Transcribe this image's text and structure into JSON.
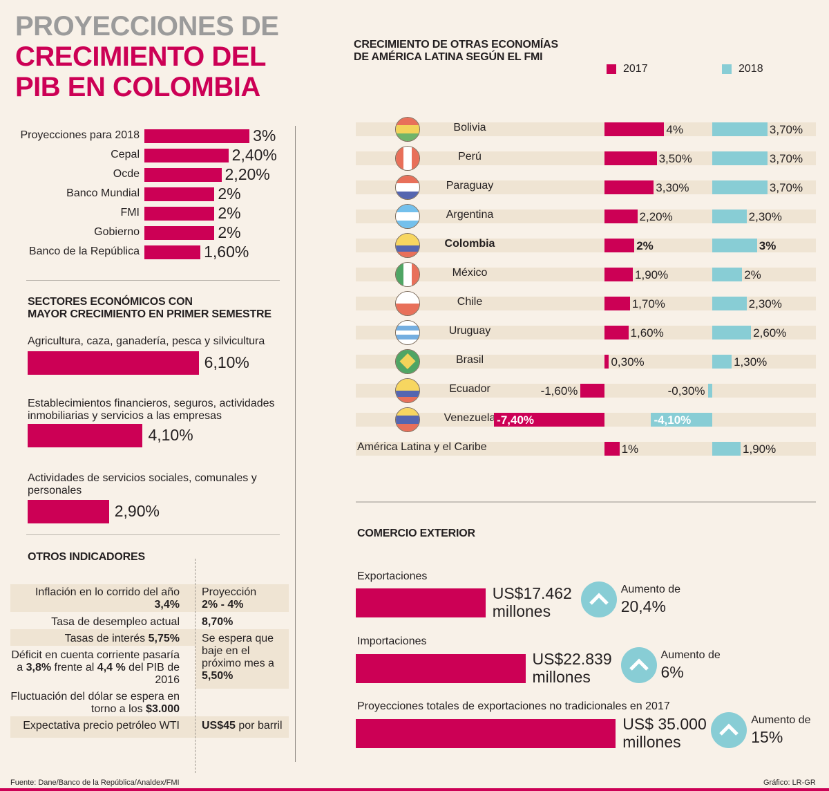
{
  "colors": {
    "accent": "#cc0055",
    "accent_2018": "#88cdd5",
    "title_gray": "#9b9b9b",
    "band": "#efe4d3",
    "background": "#f8f1e8"
  },
  "title": {
    "line1": "PROYECCIONES DE",
    "line2": "CRECIMIENTO DEL",
    "line3": "PIB EN COLOMBIA"
  },
  "chart_data": [
    {
      "type": "bar",
      "orientation": "horizontal",
      "title": "Proyecciones de crecimiento del PIB en Colombia",
      "categories": [
        "Proyecciones para 2018",
        "Cepal",
        "Ocde",
        "Banco Mundial",
        "FMI",
        "Gobierno",
        "Banco de la República"
      ],
      "values": [
        3.0,
        2.4,
        2.2,
        2.0,
        2.0,
        2.0,
        1.6
      ],
      "labels": [
        "3%",
        "2,40%",
        "2,20%",
        "2%",
        "2%",
        "2%",
        "1,60%"
      ],
      "unit": "%"
    },
    {
      "type": "bar",
      "orientation": "horizontal",
      "title": "SECTORES ECONÓMICOS CON MAYOR CRECIMIENTO EN PRIMER SEMESTRE",
      "categories": [
        "Agricultura, caza, ganadería, pesca y silvicultura",
        "Establecimientos financieros, seguros, actividades inmobiliarias y servicios a las empresas",
        "Actividades de servicios sociales, comunales y personales"
      ],
      "values": [
        6.1,
        4.1,
        2.9
      ],
      "labels": [
        "6,10%",
        "4,10%",
        "2,90%"
      ],
      "unit": "%"
    },
    {
      "type": "bar",
      "orientation": "horizontal",
      "title": "CRECIMIENTO DE OTRAS ECONOMÍAS DE AMÉRICA LATINA SEGÚN EL FMI",
      "categories": [
        "Bolivia",
        "Perú",
        "Paraguay",
        "Argentina",
        "Colombia",
        "México",
        "Chile",
        "Uruguay",
        "Brasil",
        "Ecuador",
        "Venezuela",
        "América Latina y el Caribe"
      ],
      "series": [
        {
          "name": "2017",
          "color": "#cc0055",
          "values": [
            4.0,
            3.5,
            3.3,
            2.2,
            2.0,
            1.9,
            1.7,
            1.6,
            0.3,
            -1.6,
            -7.4,
            1.0
          ],
          "labels": [
            "4%",
            "3,50%",
            "3,30%",
            "2,20%",
            "2%",
            "1,90%",
            "1,70%",
            "1,60%",
            "0,30%",
            "-1,60%",
            "-7,40%",
            "1%"
          ]
        },
        {
          "name": "2018",
          "color": "#88cdd5",
          "values": [
            3.7,
            3.7,
            3.7,
            2.3,
            3.0,
            2.0,
            2.3,
            2.6,
            1.3,
            -0.3,
            -4.1,
            1.9
          ],
          "labels": [
            "3,70%",
            "3,70%",
            "3,70%",
            "2,30%",
            "3%",
            "2%",
            "2,30%",
            "2,60%",
            "1,30%",
            "-0,30%",
            "-4,10%",
            "1,90%"
          ]
        }
      ],
      "legend": "top-right",
      "unit": "%"
    },
    {
      "type": "bar",
      "orientation": "horizontal",
      "title": "COMERCIO EXTERIOR",
      "categories": [
        "Exportaciones",
        "Importaciones",
        "Proyecciones totales de exportaciones no tradicionales  en 2017"
      ],
      "values": [
        17462,
        22839,
        35000
      ],
      "unit": "US$ millones",
      "increase_labels": [
        "20,4%",
        "6%",
        "15%"
      ]
    }
  ],
  "projections": {
    "rows": [
      {
        "label": "Proyecciones para 2018",
        "value": 3.0,
        "display": "3%"
      },
      {
        "label": "Cepal",
        "value": 2.4,
        "display": "2,40%"
      },
      {
        "label": "Ocde",
        "value": 2.2,
        "display": "2,20%"
      },
      {
        "label": "Banco Mundial",
        "value": 2.0,
        "display": "2%"
      },
      {
        "label": "FMI",
        "value": 2.0,
        "display": "2%"
      },
      {
        "label": "Gobierno",
        "value": 2.0,
        "display": "2%"
      },
      {
        "label": "Banco de la República",
        "value": 1.6,
        "display": "1,60%"
      }
    ]
  },
  "sectors": {
    "title_line1": "SECTORES ECONÓMICOS CON",
    "title_line2": "MAYOR CRECIMIENTO EN PRIMER SEMESTRE",
    "rows": [
      {
        "label": "Agricultura, caza, ganadería, pesca y silvicultura",
        "value": 6.1,
        "display": "6,10%"
      },
      {
        "label": "Establecimientos financieros, seguros, actividades inmobiliarias y servicios a las empresas",
        "value": 4.1,
        "display": "4,10%"
      },
      {
        "label": "Actividades de servicios sociales, comunales y personales",
        "value": 2.9,
        "display": "2,90%"
      }
    ]
  },
  "indicators": {
    "title": "OTROS INDICADORES",
    "rows": [
      {
        "left_text": "Inflación en lo corrido del año",
        "left_bold": "3,4%",
        "right_text": "Proyección",
        "right_bold": "2% - 4%"
      },
      {
        "left_text": "Tasa de desempleo actual",
        "right_bold": "8,70%"
      },
      {
        "left_text": "Tasas de interés",
        "left_bold": "5,75%",
        "right_text": "Se espera que baje en el próximo mes  a",
        "right_bold": "5,50%"
      },
      {
        "left_pre": "Déficit en cuenta corriente pasaría a",
        "left_bold_1": "3,8%",
        "left_mid": "frente al",
        "left_bold_2": "4,4 %",
        "left_post": "del PIB de 2016"
      },
      {
        "left_text": "Fluctuación del dólar se espera en torno a los",
        "left_bold": "$3.000"
      },
      {
        "left_text": "Expectativa precio petróleo WTI",
        "right_bold": "US$45",
        "right_text": "por barril"
      }
    ]
  },
  "latam": {
    "title_line1": "CRECIMIENTO DE OTRAS ECONOMÍAS",
    "title_line2": "DE AMÉRICA LATINA SEGÚN EL FMI",
    "legend": [
      {
        "label": "2017"
      },
      {
        "label": "2018"
      }
    ],
    "rows": [
      {
        "country": "Bolivia",
        "flag": "bolivia-flag-icon",
        "bold": false
      },
      {
        "country": "Perú",
        "flag": "peru-flag-icon",
        "bold": false
      },
      {
        "country": "Paraguay",
        "flag": "paraguay-flag-icon",
        "bold": false
      },
      {
        "country": "Argentina",
        "flag": "argentina-flag-icon",
        "bold": false
      },
      {
        "country": "Colombia",
        "flag": "colombia-flag-icon",
        "bold": true
      },
      {
        "country": "México",
        "flag": "mexico-flag-icon",
        "bold": false
      },
      {
        "country": "Chile",
        "flag": "chile-flag-icon",
        "bold": false
      },
      {
        "country": "Uruguay",
        "flag": "uruguay-flag-icon",
        "bold": false
      },
      {
        "country": "Brasil",
        "flag": "brazil-flag-icon",
        "bold": false
      },
      {
        "country": "Ecuador",
        "flag": "ecuador-flag-icon",
        "bold": false
      },
      {
        "country": "Venezuela",
        "flag": "venezuela-flag-icon",
        "bold": false
      },
      {
        "country": "América Latina y el Caribe",
        "flag": null,
        "bold": false
      }
    ]
  },
  "trade": {
    "title": "COMERCIO EXTERIOR",
    "rows": [
      {
        "label": "Exportaciones",
        "value": 17462,
        "amount": "US$17.462",
        "unit": "millones",
        "increase_label": "Aumento de",
        "increase": "20,4%",
        "icon": "arrow-up-icon"
      },
      {
        "label": "Importaciones",
        "value": 22839,
        "amount": "US$22.839",
        "unit": "millones",
        "increase_label": "Aumento de",
        "increase": "6%",
        "icon": "arrow-up-icon"
      },
      {
        "label": "Proyecciones totales de exportaciones no tradicionales  en 2017",
        "value": 35000,
        "amount": "US$ 35.000",
        "unit": "millones",
        "increase_label": "Aumento de",
        "increase": "15%",
        "icon": "arrow-up-icon"
      }
    ]
  },
  "footer": {
    "source": "Fuente: Dane/Banco de la República/Analdex/FMI",
    "credit": "Gráfico: LR-GR"
  }
}
